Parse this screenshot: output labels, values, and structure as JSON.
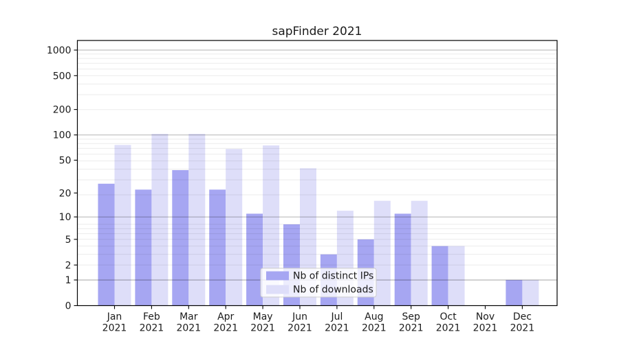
{
  "window": {
    "background": "#ffffff"
  },
  "chart_data": {
    "type": "bar",
    "title": "sapFinder 2021",
    "categories": [
      "Jan",
      "Feb",
      "Mar",
      "Apr",
      "May",
      "Jun",
      "Jul",
      "Aug",
      "Sep",
      "Oct",
      "Nov",
      "Dec"
    ],
    "category_year_label": "2021",
    "series": [
      {
        "name": "Nb of distinct IPs",
        "color": "#a6a6f2",
        "values": [
          26,
          22,
          38,
          22,
          11,
          8,
          3,
          5,
          11,
          4,
          0,
          1
        ]
      },
      {
        "name": "Nb of downloads",
        "color": "#dedef9",
        "values": [
          76,
          103,
          103,
          68,
          75,
          40,
          12,
          16,
          16,
          4,
          0,
          1
        ]
      }
    ],
    "yscale": "log1p",
    "ylim": [
      0,
      1000
    ],
    "yticks": [
      0,
      1,
      2,
      5,
      10,
      20,
      50,
      100,
      200,
      500,
      1000
    ],
    "major_grid_values": [
      1,
      10,
      100,
      1000
    ],
    "minor_grid_base_values": [
      2,
      3,
      4,
      5,
      6,
      7,
      8,
      9
    ],
    "grid": true,
    "legend_position": "lower center",
    "axis_color": "#000000",
    "major_grid_color": "rgba(0,0,0,0.30)",
    "minor_grid_color": "rgba(0,0,0,0.08)",
    "legend_border_color": "#cccccc",
    "legend_background": "rgba(255,255,255,0.8)"
  },
  "legend": {
    "items": [
      {
        "label": "Nb of distinct IPs"
      },
      {
        "label": "Nb of downloads"
      }
    ]
  }
}
